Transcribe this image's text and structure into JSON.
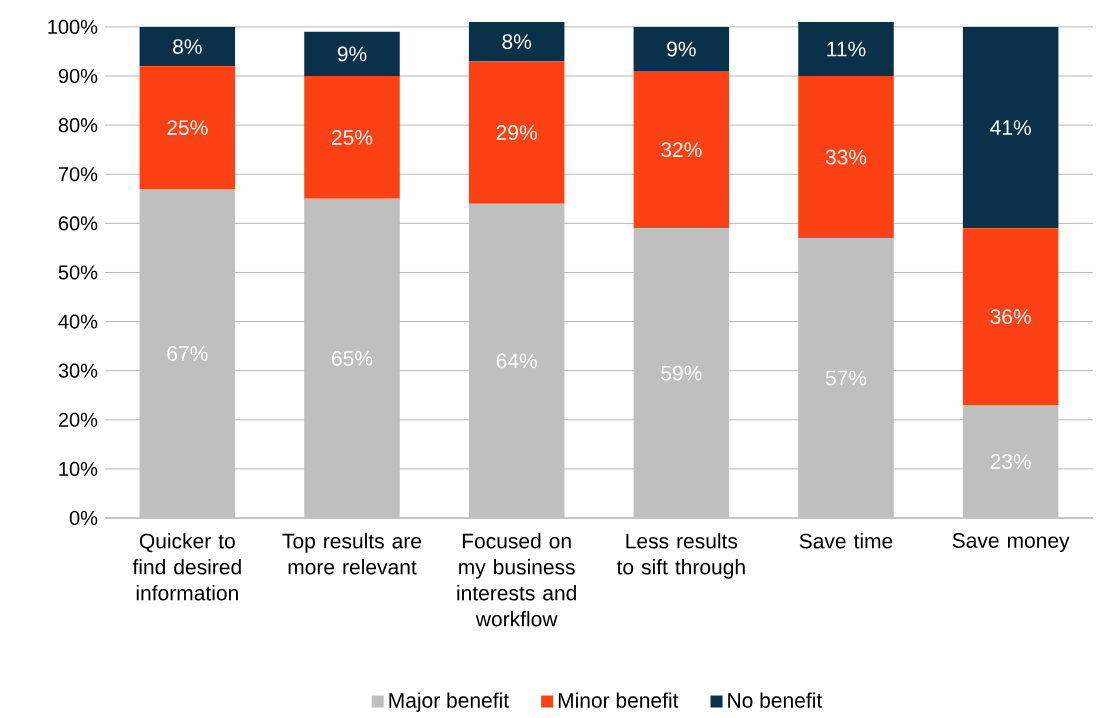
{
  "chart_data": {
    "type": "bar",
    "stacked": true,
    "categories": [
      "Quicker to find desired information",
      "Top results are more relevant",
      "Focused on my business interests and workflow",
      "Less results to sift through",
      "Save time",
      "Save money"
    ],
    "series": [
      {
        "name": "Major benefit",
        "color": "#bfbfbf",
        "values": [
          67,
          65,
          64,
          59,
          57,
          23
        ],
        "value_labels": [
          "67%",
          "65%",
          "64%",
          "59%",
          "57%",
          "23%"
        ]
      },
      {
        "name": "Minor benefit",
        "color": "#fc4215",
        "values": [
          25,
          25,
          29,
          32,
          33,
          36
        ],
        "value_labels": [
          "25%",
          "25%",
          "29%",
          "32%",
          "33%",
          "36%"
        ]
      },
      {
        "name": "No benefit",
        "color": "#0b3049",
        "values": [
          8,
          9,
          8,
          9,
          11,
          41
        ],
        "value_labels": [
          "8%",
          "9%",
          "8%",
          "9%",
          "11%",
          "41%"
        ]
      }
    ],
    "ylim": [
      0,
      101
    ],
    "yticks": [
      {
        "value": 0,
        "label": "0%"
      },
      {
        "value": 10,
        "label": "10%"
      },
      {
        "value": 20,
        "label": "20%"
      },
      {
        "value": 30,
        "label": "30%"
      },
      {
        "value": 40,
        "label": "40%"
      },
      {
        "value": 50,
        "label": "50%"
      },
      {
        "value": 60,
        "label": "60%"
      },
      {
        "value": 70,
        "label": "70%"
      },
      {
        "value": 80,
        "label": "80%"
      },
      {
        "value": 90,
        "label": "90%"
      },
      {
        "value": 100,
        "label": "100%"
      }
    ],
    "grid": "y",
    "legend": "bottom"
  }
}
